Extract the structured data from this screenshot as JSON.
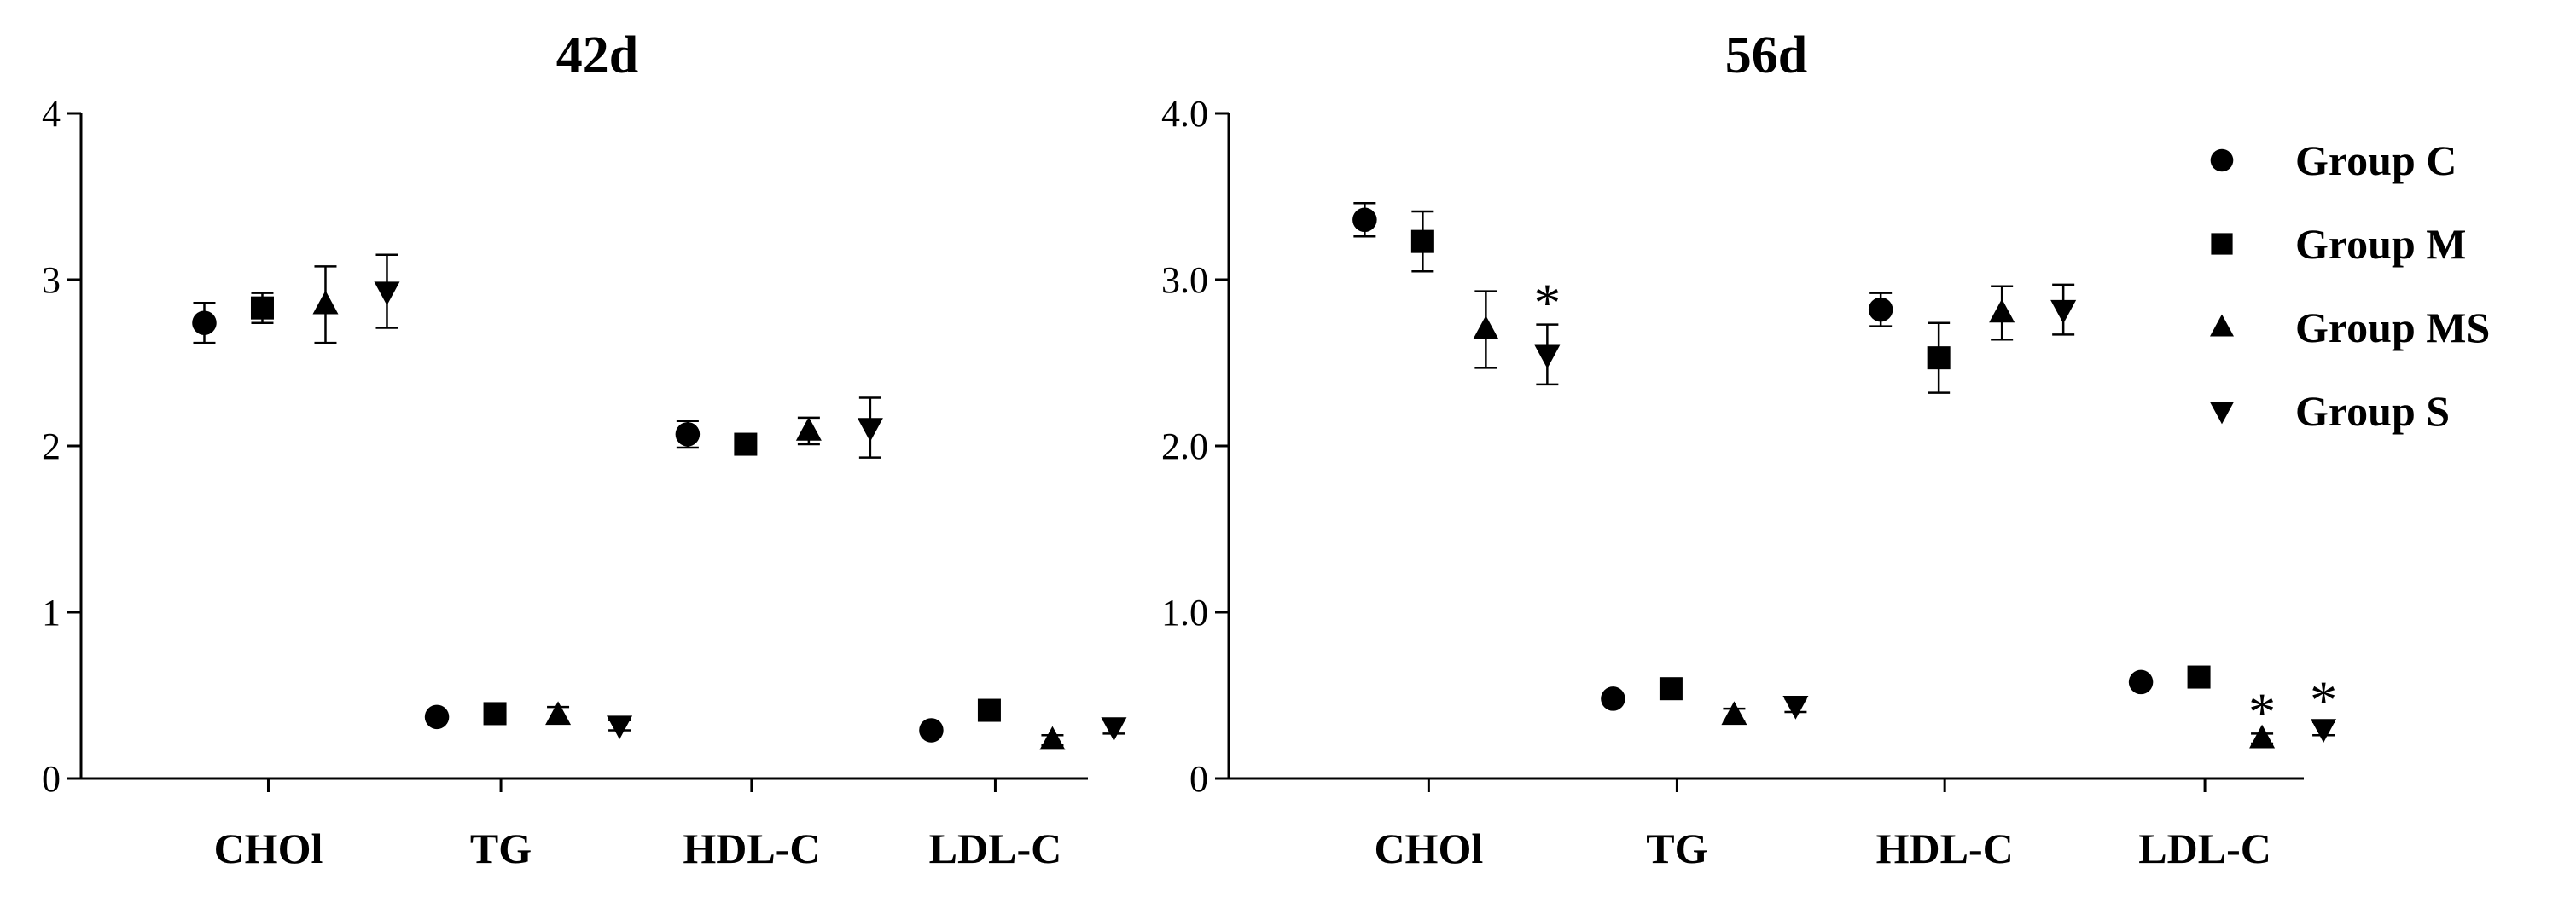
{
  "chart_data": [
    {
      "type": "scatter",
      "title": "42d",
      "categories": [
        "CHOl",
        "TG",
        "HDL-C",
        "LDL-C"
      ],
      "ylim": [
        0,
        4
      ],
      "yticks": [
        "0",
        "1",
        "2",
        "3",
        "4"
      ],
      "grid": false,
      "series": [
        {
          "name": "Group C",
          "marker": "circle",
          "values": [
            2.74,
            0.37,
            2.07,
            0.29
          ],
          "errors": [
            0.12,
            0.02,
            0.08,
            0.02
          ],
          "significant": [
            false,
            false,
            false,
            false
          ]
        },
        {
          "name": "Group M",
          "marker": "square",
          "values": [
            2.83,
            0.39,
            2.01,
            0.41
          ],
          "errors": [
            0.09,
            0.02,
            0.03,
            0.02
          ],
          "significant": [
            false,
            false,
            false,
            false
          ]
        },
        {
          "name": "Group MS",
          "marker": "triangle-up",
          "values": [
            2.85,
            0.38,
            2.09,
            0.23
          ],
          "errors": [
            0.23,
            0.05,
            0.08,
            0.03
          ],
          "significant": [
            false,
            false,
            false,
            false
          ]
        },
        {
          "name": "Group S",
          "marker": "triangle-down",
          "values": [
            2.93,
            0.32,
            2.11,
            0.31
          ],
          "errors": [
            0.22,
            0.03,
            0.18,
            0.04
          ],
          "significant": [
            false,
            false,
            false,
            false
          ]
        }
      ]
    },
    {
      "type": "scatter",
      "title": "56d",
      "categories": [
        "CHOl",
        "TG",
        "HDL-C",
        "LDL-C"
      ],
      "ylim": [
        0,
        4
      ],
      "yticks": [
        "0",
        "1.0",
        "2.0",
        "3.0",
        "4.0"
      ],
      "grid": false,
      "legend_position": "right",
      "series": [
        {
          "name": "Group C",
          "marker": "circle",
          "values": [
            3.36,
            0.48,
            2.82,
            0.58
          ],
          "errors": [
            0.1,
            0.02,
            0.1,
            0.02
          ],
          "significant": [
            false,
            false,
            false,
            false
          ]
        },
        {
          "name": "Group M",
          "marker": "square",
          "values": [
            3.23,
            0.54,
            2.53,
            0.61
          ],
          "errors": [
            0.18,
            0.02,
            0.21,
            0.02
          ],
          "significant": [
            false,
            false,
            false,
            false
          ]
        },
        {
          "name": "Group MS",
          "marker": "triangle-up",
          "values": [
            2.7,
            0.38,
            2.8,
            0.24
          ],
          "errors": [
            0.23,
            0.04,
            0.16,
            0.03
          ],
          "significant": [
            false,
            false,
            false,
            true
          ]
        },
        {
          "name": "Group S",
          "marker": "triangle-down",
          "values": [
            2.55,
            0.44,
            2.82,
            0.3
          ],
          "errors": [
            0.18,
            0.04,
            0.15,
            0.04
          ],
          "significant": [
            true,
            false,
            false,
            true
          ]
        }
      ]
    }
  ],
  "significance_marker": "*"
}
